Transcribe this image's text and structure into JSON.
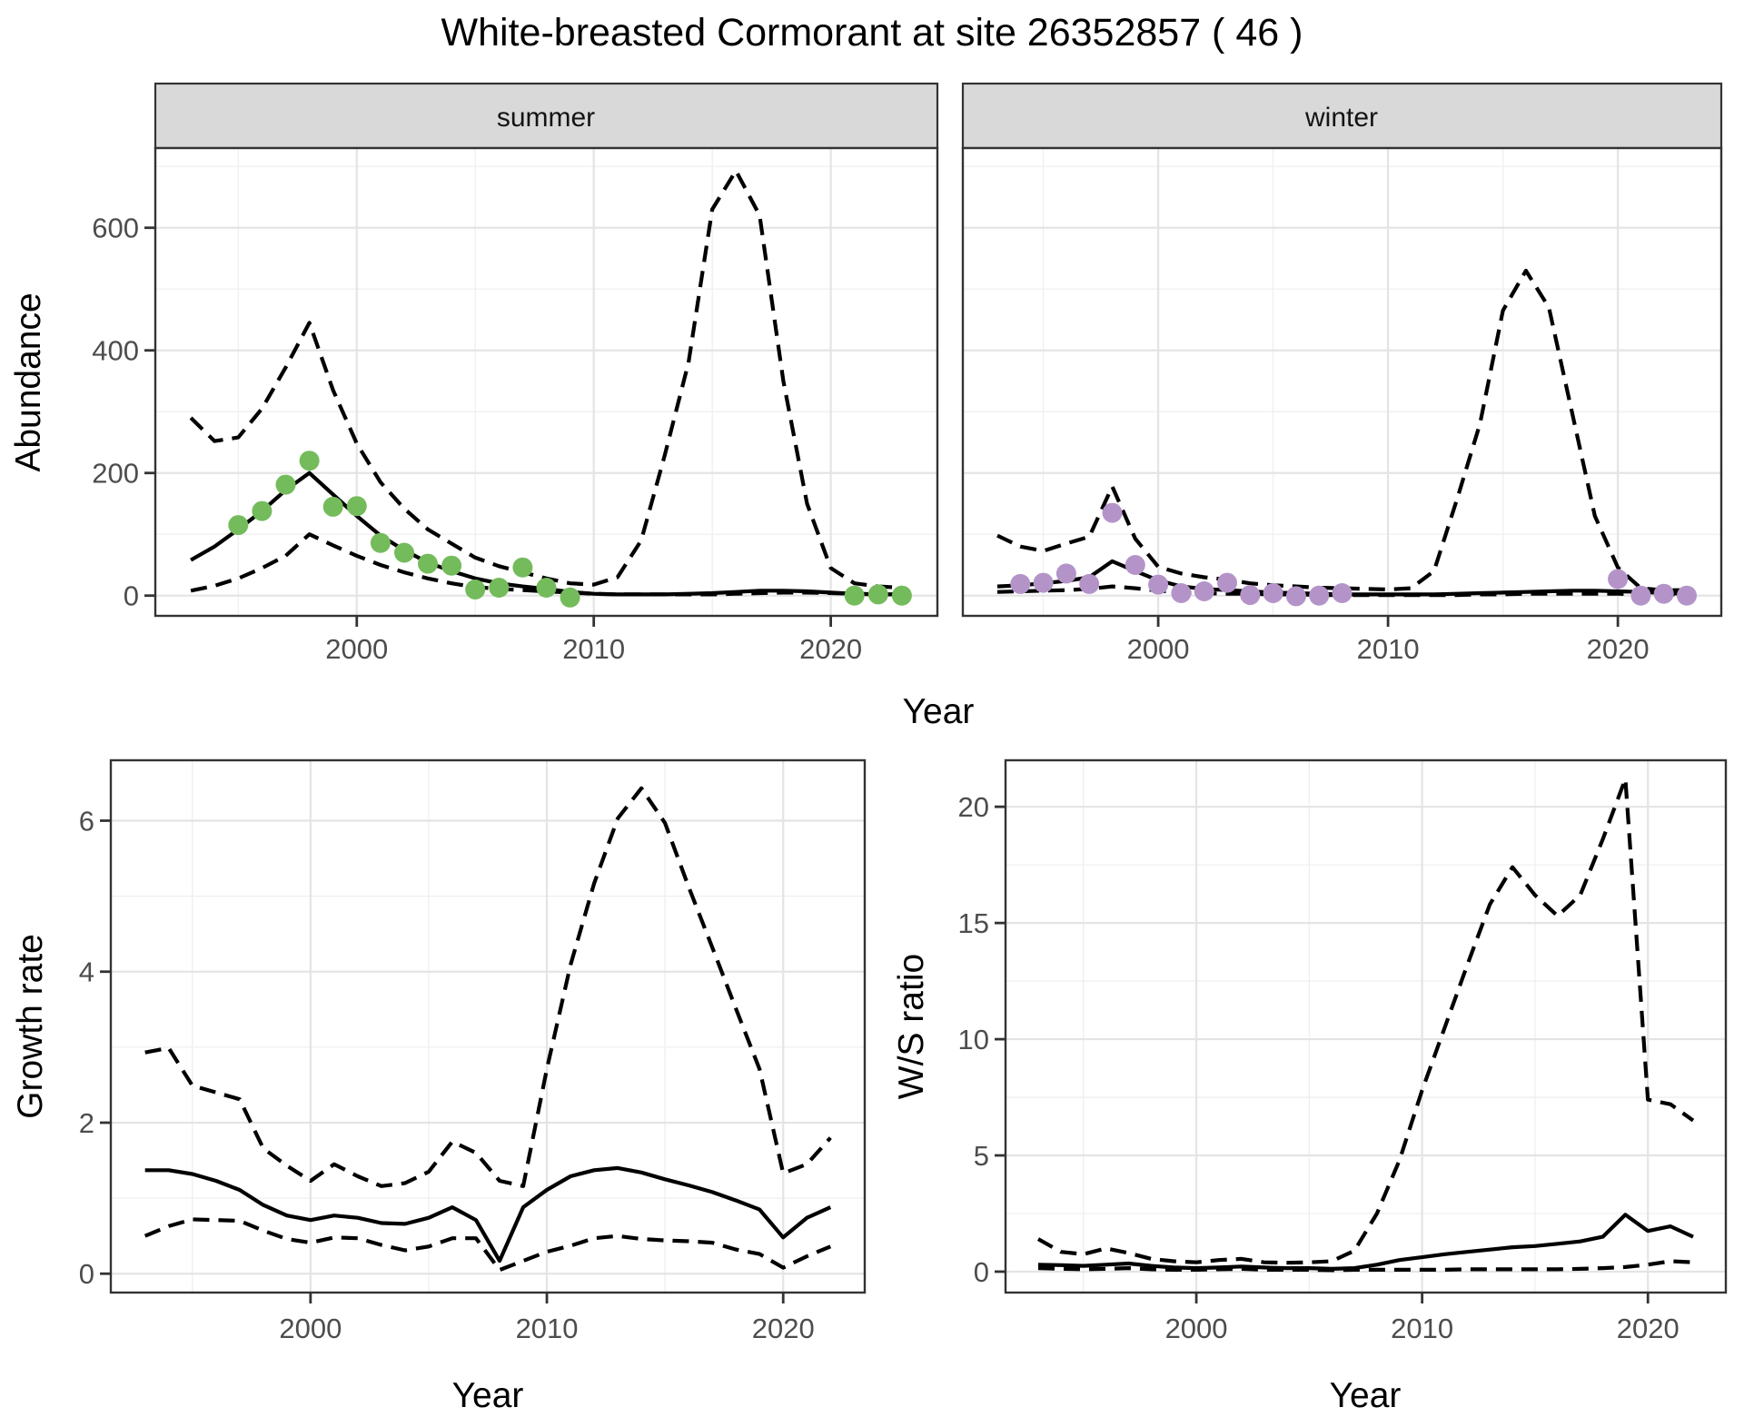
{
  "title": "White-breasted Cormorant at site 26352857 ( 46 )",
  "colors": {
    "summer_points": "#74BB5C",
    "winter_points": "#B494C8",
    "line": "#000000",
    "grid_major": "#E4E4E4",
    "grid_minor": "#EFEFEF",
    "strip_background": "#D9D9D9",
    "panel_border": "#333333",
    "axis_text": "#4D4D4D",
    "background": "#FFFFFF"
  },
  "chart_data": [
    {
      "id": "abundance-summer",
      "type": "line",
      "facet_label": "summer",
      "xlabel": "Year",
      "ylabel": "Abundance",
      "legend": "none",
      "grid": true,
      "x": [
        1993,
        1994,
        1995,
        1996,
        1997,
        1998,
        1999,
        2000,
        2001,
        2002,
        2003,
        2004,
        2005,
        2006,
        2007,
        2008,
        2009,
        2010,
        2011,
        2012,
        2013,
        2014,
        2015,
        2016,
        2017,
        2018,
        2019,
        2020,
        2021,
        2022,
        2023
      ],
      "series": [
        {
          "name": "fit",
          "style": "solid",
          "values": [
            58,
            80,
            108,
            138,
            172,
            200,
            165,
            130,
            98,
            74,
            54,
            40,
            28,
            20,
            15,
            11,
            6,
            3,
            2,
            2,
            2,
            3,
            4,
            6,
            8,
            8,
            7,
            5,
            3,
            2,
            2
          ]
        },
        {
          "name": "upper_ci",
          "style": "dashed",
          "values": [
            290,
            252,
            258,
            305,
            372,
            445,
            335,
            248,
            185,
            142,
            108,
            85,
            62,
            48,
            38,
            28,
            20,
            18,
            30,
            90,
            230,
            380,
            630,
            693,
            620,
            350,
            150,
            45,
            20,
            15,
            13
          ]
        },
        {
          "name": "lower_ci",
          "style": "dashed",
          "values": [
            8,
            16,
            28,
            45,
            65,
            100,
            82,
            65,
            50,
            38,
            28,
            20,
            14,
            11,
            9,
            7,
            5,
            3,
            2,
            2,
            2,
            2,
            2,
            3,
            4,
            5,
            5,
            4,
            3,
            2,
            2
          ]
        }
      ],
      "points": [
        [
          1995,
          115
        ],
        [
          1996,
          138
        ],
        [
          1997,
          181
        ],
        [
          1998,
          220
        ],
        [
          1999,
          145
        ],
        [
          2000,
          146
        ],
        [
          2001,
          86
        ],
        [
          2002,
          70
        ],
        [
          2003,
          52
        ],
        [
          2004,
          49
        ],
        [
          2005,
          10
        ],
        [
          2006,
          13
        ],
        [
          2007,
          46
        ],
        [
          2008,
          13
        ],
        [
          2009,
          -3
        ],
        [
          2021,
          0
        ],
        [
          2022,
          2
        ],
        [
          2023,
          0
        ]
      ],
      "point_color": "#74BB5C",
      "xlim": [
        1991.5,
        2024.5
      ],
      "ylim": [
        -33,
        730
      ],
      "xticks": [
        2000,
        2010,
        2020
      ],
      "xminor": [
        1995,
        2005,
        2015
      ],
      "yticks": [
        0,
        200,
        400,
        600
      ],
      "yminor": [
        100,
        300,
        500,
        700
      ]
    },
    {
      "id": "abundance-winter",
      "type": "line",
      "facet_label": "winter",
      "xlabel": "Year",
      "ylabel": "Abundance",
      "legend": "none",
      "grid": true,
      "x": [
        1993,
        1994,
        1995,
        1996,
        1997,
        1998,
        1999,
        2000,
        2001,
        2002,
        2003,
        2004,
        2005,
        2006,
        2007,
        2008,
        2009,
        2010,
        2011,
        2012,
        2013,
        2014,
        2015,
        2016,
        2017,
        2018,
        2019,
        2020,
        2021,
        2022,
        2023
      ],
      "series": [
        {
          "name": "fit",
          "style": "solid",
          "values": [
            15,
            17,
            20,
            24,
            30,
            56,
            40,
            25,
            15,
            11,
            9,
            7,
            5,
            4,
            3,
            2,
            2,
            2,
            2,
            2,
            3,
            4,
            5,
            6,
            7,
            8,
            8,
            7,
            6,
            4,
            3
          ]
        },
        {
          "name": "upper_ci",
          "style": "dashed",
          "values": [
            98,
            80,
            73,
            85,
            96,
            178,
            93,
            47,
            36,
            30,
            26,
            20,
            17,
            15,
            13,
            12,
            11,
            10,
            12,
            40,
            157,
            280,
            465,
            530,
            470,
            300,
            130,
            46,
            12,
            9,
            9
          ]
        },
        {
          "name": "lower_ci",
          "style": "dashed",
          "values": [
            6,
            7,
            8,
            9,
            11,
            15,
            12,
            8,
            5,
            4,
            3,
            3,
            2,
            2,
            1,
            1,
            1,
            1,
            1,
            1,
            1,
            2,
            2,
            3,
            3,
            3,
            3,
            3,
            2,
            2,
            2
          ]
        }
      ],
      "points": [
        [
          1994,
          19
        ],
        [
          1995,
          21
        ],
        [
          1996,
          36
        ],
        [
          1997,
          19
        ],
        [
          1998,
          135
        ],
        [
          1999,
          50
        ],
        [
          2000,
          18
        ],
        [
          2001,
          4
        ],
        [
          2002,
          7
        ],
        [
          2003,
          21
        ],
        [
          2004,
          1
        ],
        [
          2005,
          4
        ],
        [
          2006,
          -1
        ],
        [
          2007,
          0
        ],
        [
          2008,
          4
        ],
        [
          2020,
          27
        ],
        [
          2021,
          0
        ],
        [
          2022,
          3
        ],
        [
          2023,
          0
        ]
      ],
      "point_color": "#B494C8",
      "xlim": [
        1991.5,
        2024.5
      ],
      "ylim": [
        -33,
        730
      ],
      "xticks": [
        2000,
        2010,
        2020
      ],
      "xminor": [
        1995,
        2005,
        2015
      ],
      "yticks": [
        0,
        200,
        400,
        600
      ],
      "yminor": [
        100,
        300,
        500,
        700
      ]
    },
    {
      "id": "growth-rate",
      "type": "line",
      "facet_label": "",
      "xlabel": "Year",
      "ylabel": "Growth rate",
      "legend": "none",
      "grid": true,
      "x": [
        1993,
        1994,
        1995,
        1996,
        1997,
        1998,
        1999,
        2000,
        2001,
        2002,
        2003,
        2004,
        2005,
        2006,
        2007,
        2008,
        2009,
        2010,
        2011,
        2012,
        2013,
        2014,
        2015,
        2016,
        2017,
        2018,
        2019,
        2020,
        2021,
        2022
      ],
      "series": [
        {
          "name": "fit",
          "style": "solid",
          "values": [
            1.37,
            1.37,
            1.32,
            1.23,
            1.11,
            0.91,
            0.77,
            0.71,
            0.77,
            0.74,
            0.67,
            0.66,
            0.74,
            0.88,
            0.71,
            0.17,
            0.88,
            1.11,
            1.29,
            1.37,
            1.4,
            1.34,
            1.25,
            1.17,
            1.08,
            0.97,
            0.85,
            0.48,
            0.74,
            0.88
          ]
        },
        {
          "name": "upper_ci",
          "style": "dashed",
          "values": [
            2.93,
            2.99,
            2.49,
            2.4,
            2.31,
            1.66,
            1.43,
            1.23,
            1.45,
            1.29,
            1.16,
            1.2,
            1.35,
            1.75,
            1.6,
            1.23,
            1.16,
            2.71,
            4.09,
            5.17,
            6.03,
            6.43,
            5.97,
            5.12,
            4.32,
            3.51,
            2.71,
            1.33,
            1.45,
            1.8
          ]
        },
        {
          "name": "lower_ci",
          "style": "dashed",
          "values": [
            0.5,
            0.63,
            0.72,
            0.71,
            0.7,
            0.57,
            0.46,
            0.41,
            0.48,
            0.47,
            0.38,
            0.31,
            0.36,
            0.47,
            0.47,
            0.05,
            0.17,
            0.29,
            0.37,
            0.47,
            0.5,
            0.46,
            0.44,
            0.43,
            0.41,
            0.32,
            0.26,
            0.08,
            0.23,
            0.36
          ]
        }
      ],
      "points": [],
      "point_color": "#000000",
      "xlim": [
        1991.55,
        2023.45
      ],
      "ylim": [
        -0.25,
        6.8
      ],
      "xticks": [
        2000,
        2010,
        2020
      ],
      "xminor": [
        1995,
        2005,
        2015
      ],
      "yticks": [
        0,
        2,
        4,
        6
      ],
      "yminor": [
        1,
        3,
        5
      ]
    },
    {
      "id": "ws-ratio",
      "type": "line",
      "facet_label": "",
      "xlabel": "Year",
      "ylabel": "W/S ratio",
      "legend": "none",
      "grid": true,
      "x": [
        1993,
        1994,
        1995,
        1996,
        1997,
        1998,
        1999,
        2000,
        2001,
        2002,
        2003,
        2004,
        2005,
        2006,
        2007,
        2008,
        2009,
        2010,
        2011,
        2012,
        2013,
        2014,
        2015,
        2016,
        2017,
        2018,
        2019,
        2020,
        2021,
        2022
      ],
      "series": [
        {
          "name": "fit",
          "style": "solid",
          "values": [
            0.3,
            0.28,
            0.25,
            0.3,
            0.35,
            0.25,
            0.18,
            0.15,
            0.18,
            0.22,
            0.18,
            0.15,
            0.15,
            0.12,
            0.15,
            0.3,
            0.5,
            0.62,
            0.75,
            0.85,
            0.95,
            1.05,
            1.1,
            1.2,
            1.3,
            1.5,
            2.45,
            1.75,
            1.95,
            1.5
          ]
        },
        {
          "name": "upper_ci",
          "style": "dashed",
          "values": [
            1.4,
            0.85,
            0.75,
            1.0,
            0.8,
            0.55,
            0.45,
            0.4,
            0.5,
            0.55,
            0.4,
            0.38,
            0.4,
            0.45,
            0.9,
            2.5,
            4.8,
            7.8,
            10.5,
            13.2,
            15.8,
            17.4,
            16.2,
            15.3,
            16.2,
            18.6,
            21.2,
            7.4,
            7.2,
            6.5
          ]
        },
        {
          "name": "lower_ci",
          "style": "dashed",
          "values": [
            0.15,
            0.12,
            0.1,
            0.12,
            0.15,
            0.1,
            0.08,
            0.08,
            0.1,
            0.12,
            0.08,
            0.08,
            0.08,
            0.06,
            0.08,
            0.08,
            0.08,
            0.08,
            0.08,
            0.1,
            0.1,
            0.1,
            0.1,
            0.1,
            0.12,
            0.15,
            0.2,
            0.3,
            0.45,
            0.4
          ]
        }
      ],
      "points": [],
      "point_color": "#000000",
      "xlim": [
        1991.55,
        2023.45
      ],
      "ylim": [
        -0.9,
        22.0
      ],
      "xticks": [
        2000,
        2010,
        2020
      ],
      "xminor": [
        1995,
        2005,
        2015
      ],
      "yticks": [
        0,
        5,
        10,
        15,
        20
      ],
      "yminor": [
        2.5,
        7.5,
        12.5,
        17.5
      ]
    }
  ]
}
